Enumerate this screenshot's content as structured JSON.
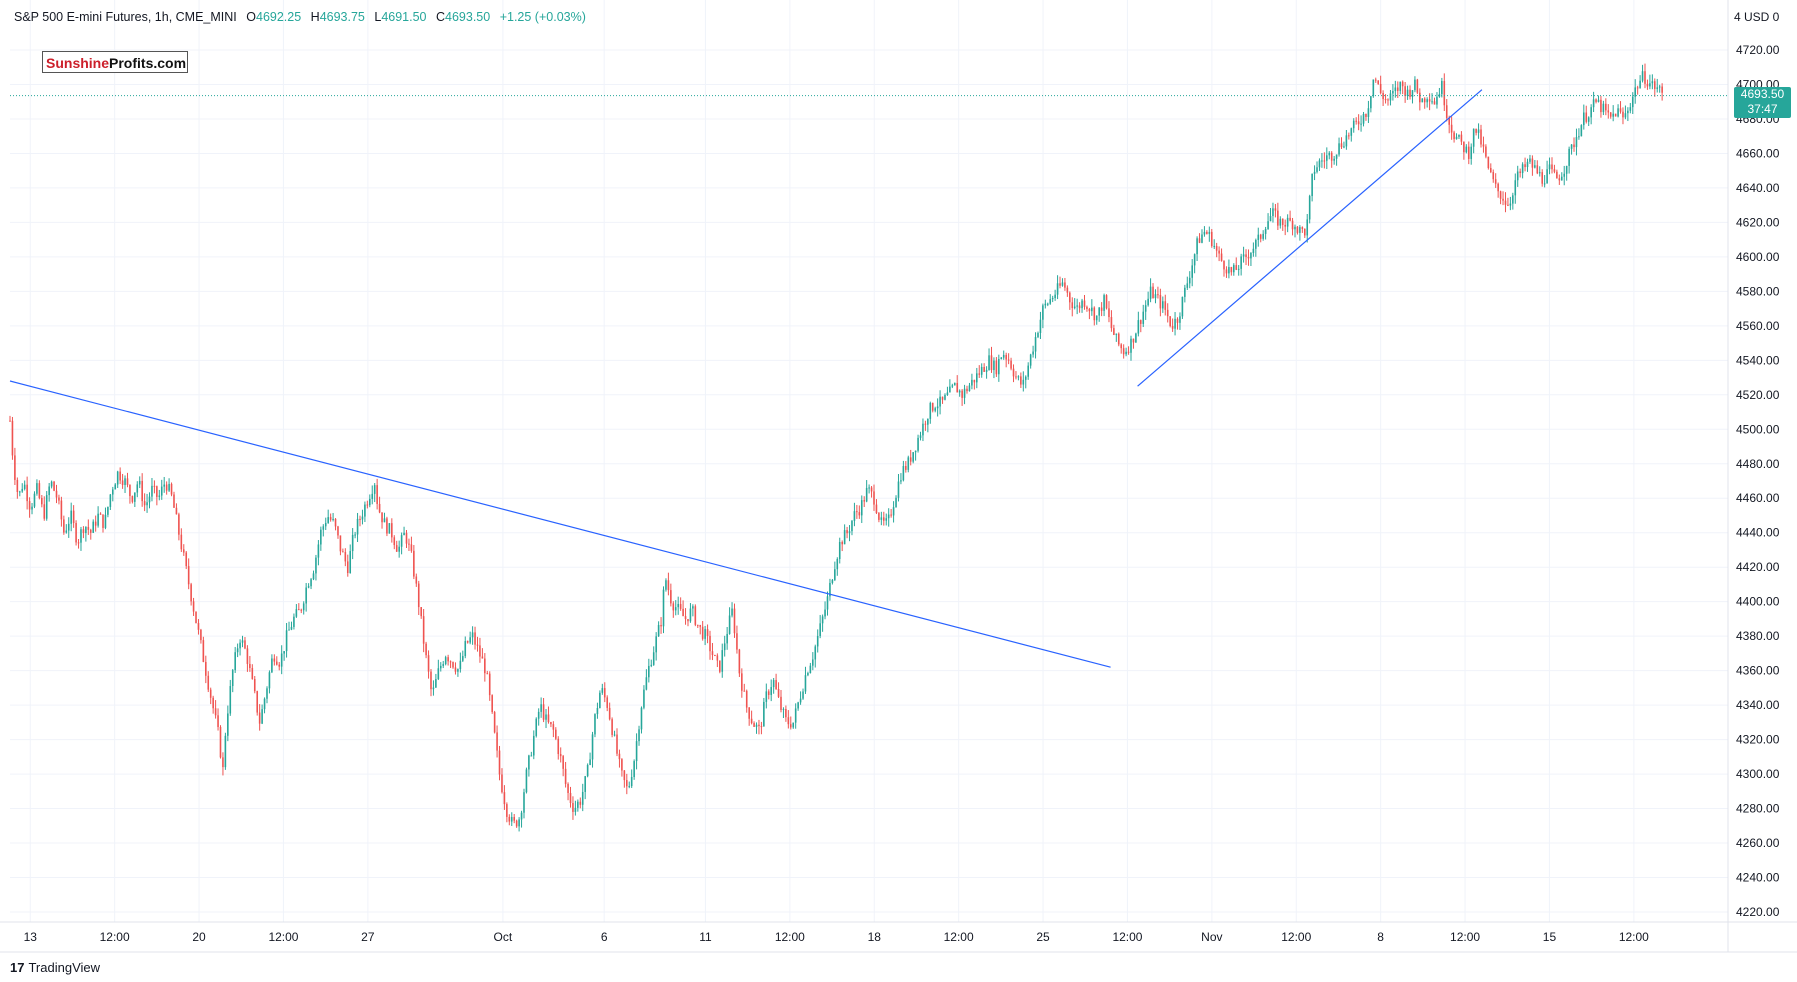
{
  "header": {
    "symbol": "S&P 500 E-mini Futures, 1h, CME_MINI",
    "o_label": "O",
    "o_value": "4692.25",
    "h_label": "H",
    "h_value": "4693.75",
    "l_label": "L",
    "l_value": "4691.50",
    "c_label": "C",
    "c_value": "4693.50",
    "change": "+1.25 (+0.03%)"
  },
  "logo": {
    "part1": "Sunshine",
    "part2": "Profits.com"
  },
  "price_axis": {
    "currency": "4 USD 0",
    "last_price": "4693.50",
    "countdown": "37:47"
  },
  "footer": {
    "brand_mark": "17",
    "brand_name": "TradingView"
  },
  "colors": {
    "up": "#26a69a",
    "down": "#ef5350",
    "trendline": "#2962ff",
    "grid": "#f0f3fa",
    "axis_text": "#131722"
  },
  "chart_data": {
    "type": "candlestick",
    "title": "",
    "ylabel": "",
    "xlabel": "",
    "y_range": [
      4210,
      4730
    ],
    "x_range": [
      0,
      1000
    ],
    "y_ticks": [
      4220,
      4240,
      4260,
      4280,
      4300,
      4320,
      4340,
      4360,
      4380,
      4400,
      4420,
      4440,
      4460,
      4480,
      4500,
      4520,
      4540,
      4560,
      4580,
      4600,
      4620,
      4640,
      4660,
      4680,
      4700,
      4720
    ],
    "y_tick_labels": [
      "4220.00",
      "4240.00",
      "4260.00",
      "4280.00",
      "4300.00",
      "4320.00",
      "4340.00",
      "4360.00",
      "4380.00",
      "4400.00",
      "4420.00",
      "4440.00",
      "4460.00",
      "4480.00",
      "4500.00",
      "4520.00",
      "4540.00",
      "4560.00",
      "4580.00",
      "4600.00",
      "4620.00",
      "4640.00",
      "4660.00",
      "4680.00",
      "4700.00",
      "4720.00"
    ],
    "x_ticks": [
      {
        "label": "13",
        "x": 12
      },
      {
        "label": "12:00",
        "x": 62
      },
      {
        "label": "20",
        "x": 112
      },
      {
        "label": "12:00",
        "x": 162
      },
      {
        "label": "27",
        "x": 212
      },
      {
        "label": "Oct",
        "x": 292
      },
      {
        "label": "6",
        "x": 352
      },
      {
        "label": "11",
        "x": 412
      },
      {
        "label": "12:00",
        "x": 462
      },
      {
        "label": "18",
        "x": 512
      },
      {
        "label": "12:00",
        "x": 562
      },
      {
        "label": "25",
        "x": 612
      },
      {
        "label": "12:00",
        "x": 662
      },
      {
        "label": "Nov",
        "x": 712
      },
      {
        "label": "12:00",
        "x": 762
      },
      {
        "label": "8",
        "x": 812
      },
      {
        "label": "12:00",
        "x": 862
      },
      {
        "label": "15",
        "x": 912
      },
      {
        "label": "12:00",
        "x": 962
      }
    ],
    "price_path": [
      [
        0,
        4505
      ],
      [
        2,
        4480
      ],
      [
        5,
        4460
      ],
      [
        8,
        4470
      ],
      [
        12,
        4455
      ],
      [
        16,
        4465
      ],
      [
        20,
        4450
      ],
      [
        24,
        4470
      ],
      [
        28,
        4460
      ],
      [
        32,
        4440
      ],
      [
        36,
        4450
      ],
      [
        40,
        4435
      ],
      [
        44,
        4445
      ],
      [
        48,
        4440
      ],
      [
        52,
        4450
      ],
      [
        56,
        4445
      ],
      [
        60,
        4465
      ],
      [
        64,
        4475
      ],
      [
        68,
        4470
      ],
      [
        72,
        4460
      ],
      [
        76,
        4470
      ],
      [
        80,
        4455
      ],
      [
        84,
        4465
      ],
      [
        88,
        4460
      ],
      [
        92,
        4470
      ],
      [
        96,
        4460
      ],
      [
        100,
        4440
      ],
      [
        104,
        4420
      ],
      [
        108,
        4400
      ],
      [
        112,
        4380
      ],
      [
        116,
        4360
      ],
      [
        120,
        4340
      ],
      [
        124,
        4320
      ],
      [
        126,
        4300
      ],
      [
        128,
        4330
      ],
      [
        132,
        4360
      ],
      [
        136,
        4380
      ],
      [
        140,
        4370
      ],
      [
        144,
        4350
      ],
      [
        148,
        4330
      ],
      [
        152,
        4350
      ],
      [
        156,
        4370
      ],
      [
        160,
        4365
      ],
      [
        164,
        4380
      ],
      [
        168,
        4390
      ],
      [
        172,
        4395
      ],
      [
        176,
        4410
      ],
      [
        180,
        4420
      ],
      [
        184,
        4440
      ],
      [
        188,
        4450
      ],
      [
        192,
        4445
      ],
      [
        196,
        4430
      ],
      [
        200,
        4420
      ],
      [
        204,
        4440
      ],
      [
        208,
        4450
      ],
      [
        212,
        4460
      ],
      [
        216,
        4470
      ],
      [
        218,
        4455
      ],
      [
        222,
        4445
      ],
      [
        226,
        4440
      ],
      [
        230,
        4430
      ],
      [
        234,
        4440
      ],
      [
        238,
        4425
      ],
      [
        242,
        4400
      ],
      [
        246,
        4370
      ],
      [
        250,
        4345
      ],
      [
        254,
        4360
      ],
      [
        258,
        4370
      ],
      [
        262,
        4365
      ],
      [
        266,
        4360
      ],
      [
        270,
        4375
      ],
      [
        274,
        4380
      ],
      [
        278,
        4370
      ],
      [
        282,
        4360
      ],
      [
        286,
        4330
      ],
      [
        290,
        4300
      ],
      [
        294,
        4280
      ],
      [
        298,
        4270
      ],
      [
        302,
        4275
      ],
      [
        306,
        4300
      ],
      [
        310,
        4320
      ],
      [
        314,
        4340
      ],
      [
        318,
        4330
      ],
      [
        322,
        4325
      ],
      [
        326,
        4310
      ],
      [
        330,
        4290
      ],
      [
        334,
        4280
      ],
      [
        338,
        4285
      ],
      [
        342,
        4300
      ],
      [
        346,
        4330
      ],
      [
        350,
        4350
      ],
      [
        354,
        4340
      ],
      [
        358,
        4320
      ],
      [
        362,
        4300
      ],
      [
        366,
        4290
      ],
      [
        370,
        4310
      ],
      [
        374,
        4340
      ],
      [
        378,
        4360
      ],
      [
        382,
        4375
      ],
      [
        386,
        4390
      ],
      [
        388,
        4415
      ],
      [
        392,
        4400
      ],
      [
        396,
        4395
      ],
      [
        400,
        4390
      ],
      [
        404,
        4395
      ],
      [
        408,
        4385
      ],
      [
        412,
        4380
      ],
      [
        416,
        4370
      ],
      [
        420,
        4360
      ],
      [
        424,
        4380
      ],
      [
        428,
        4395
      ],
      [
        432,
        4360
      ],
      [
        436,
        4340
      ],
      [
        440,
        4330
      ],
      [
        444,
        4325
      ],
      [
        448,
        4345
      ],
      [
        452,
        4355
      ],
      [
        456,
        4340
      ],
      [
        460,
        4330
      ],
      [
        464,
        4330
      ],
      [
        468,
        4345
      ],
      [
        472,
        4360
      ],
      [
        476,
        4370
      ],
      [
        480,
        4385
      ],
      [
        484,
        4400
      ],
      [
        488,
        4420
      ],
      [
        492,
        4435
      ],
      [
        496,
        4440
      ],
      [
        500,
        4450
      ],
      [
        504,
        4455
      ],
      [
        508,
        4465
      ],
      [
        512,
        4460
      ],
      [
        516,
        4445
      ],
      [
        520,
        4445
      ],
      [
        524,
        4460
      ],
      [
        528,
        4475
      ],
      [
        532,
        4480
      ],
      [
        536,
        4490
      ],
      [
        540,
        4500
      ],
      [
        544,
        4510
      ],
      [
        548,
        4515
      ],
      [
        552,
        4515
      ],
      [
        556,
        4520
      ],
      [
        560,
        4525
      ],
      [
        564,
        4520
      ],
      [
        568,
        4525
      ],
      [
        572,
        4530
      ],
      [
        576,
        4535
      ],
      [
        580,
        4540
      ],
      [
        584,
        4535
      ],
      [
        588,
        4545
      ],
      [
        592,
        4540
      ],
      [
        596,
        4530
      ],
      [
        600,
        4525
      ],
      [
        604,
        4540
      ],
      [
        608,
        4555
      ],
      [
        612,
        4570
      ],
      [
        616,
        4575
      ],
      [
        620,
        4580
      ],
      [
        624,
        4585
      ],
      [
        628,
        4575
      ],
      [
        632,
        4570
      ],
      [
        636,
        4575
      ],
      [
        640,
        4570
      ],
      [
        644,
        4565
      ],
      [
        648,
        4575
      ],
      [
        652,
        4560
      ],
      [
        656,
        4550
      ],
      [
        660,
        4545
      ],
      [
        664,
        4550
      ],
      [
        668,
        4560
      ],
      [
        672,
        4570
      ],
      [
        676,
        4580
      ],
      [
        680,
        4575
      ],
      [
        684,
        4570
      ],
      [
        688,
        4560
      ],
      [
        692,
        4565
      ],
      [
        696,
        4580
      ],
      [
        700,
        4595
      ],
      [
        704,
        4610
      ],
      [
        708,
        4615
      ],
      [
        712,
        4610
      ],
      [
        716,
        4600
      ],
      [
        720,
        4595
      ],
      [
        724,
        4590
      ],
      [
        728,
        4595
      ],
      [
        732,
        4600
      ],
      [
        736,
        4605
      ],
      [
        740,
        4610
      ],
      [
        744,
        4620
      ],
      [
        748,
        4625
      ],
      [
        752,
        4620
      ],
      [
        756,
        4620
      ],
      [
        760,
        4620
      ],
      [
        764,
        4615
      ],
      [
        768,
        4615
      ],
      [
        772,
        4650
      ],
      [
        776,
        4655
      ],
      [
        780,
        4658
      ],
      [
        784,
        4660
      ],
      [
        788,
        4665
      ],
      [
        792,
        4670
      ],
      [
        796,
        4675
      ],
      [
        800,
        4680
      ],
      [
        804,
        4685
      ],
      [
        808,
        4705
      ],
      [
        812,
        4695
      ],
      [
        816,
        4690
      ],
      [
        820,
        4695
      ],
      [
        824,
        4700
      ],
      [
        828,
        4695
      ],
      [
        832,
        4700
      ],
      [
        836,
        4690
      ],
      [
        840,
        4695
      ],
      [
        844,
        4690
      ],
      [
        848,
        4700
      ],
      [
        852,
        4680
      ],
      [
        856,
        4670
      ],
      [
        860,
        4665
      ],
      [
        864,
        4660
      ],
      [
        868,
        4675
      ],
      [
        872,
        4665
      ],
      [
        876,
        4650
      ],
      [
        880,
        4640
      ],
      [
        884,
        4635
      ],
      [
        888,
        4630
      ],
      [
        892,
        4645
      ],
      [
        896,
        4650
      ],
      [
        900,
        4655
      ],
      [
        904,
        4650
      ],
      [
        908,
        4645
      ],
      [
        912,
        4650
      ],
      [
        916,
        4645
      ],
      [
        920,
        4650
      ],
      [
        924,
        4660
      ],
      [
        928,
        4670
      ],
      [
        932,
        4680
      ],
      [
        936,
        4685
      ],
      [
        940,
        4690
      ],
      [
        944,
        4685
      ],
      [
        948,
        4680
      ],
      [
        952,
        4685
      ],
      [
        956,
        4680
      ],
      [
        960,
        4690
      ],
      [
        964,
        4700
      ],
      [
        968,
        4705
      ],
      [
        972,
        4700
      ],
      [
        976,
        4698
      ],
      [
        980,
        4693
      ]
    ],
    "trendlines": [
      {
        "name": "descending-resistance",
        "x1": 0,
        "y1": 4528,
        "x2": 652,
        "y2": 4362
      },
      {
        "name": "rising-support",
        "x1": 668,
        "y1": 4525,
        "x2": 872,
        "y2": 4697
      }
    ],
    "last_price": 4693.5
  }
}
